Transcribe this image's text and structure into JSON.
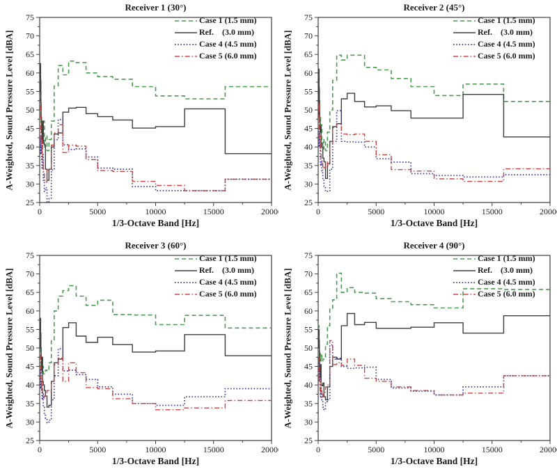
{
  "figure": {
    "xlabel": "1/3-Octave Band [Hz]",
    "ylabel": "A-Weighted, Sound Pressure Level [dBA]",
    "axes": {
      "xlim": [
        0,
        20000
      ],
      "ylim": [
        25,
        75
      ],
      "x_major_ticks": [
        0,
        5000,
        10000,
        15000,
        20000
      ],
      "x_minor_step": 2500,
      "y_major_step": 5,
      "y_minor_step": 2.5,
      "grid": "off",
      "frame": "box"
    },
    "legend": {
      "position": "upper-right-inside",
      "entries": [
        {
          "label": "Case 1 (1.5 mm)",
          "color": "#4a9b50",
          "dash": "dashed"
        },
        {
          "label": "Ref.    (3.0 mm)",
          "color": "#3d3d3d",
          "dash": "solid"
        },
        {
          "label": "Case 4 (4.5 mm)",
          "color": "#3b3b9d",
          "dash": "dotted"
        },
        {
          "label": "Case 5 (6.0 mm)",
          "color": "#c84545",
          "dash": "dashdot"
        }
      ]
    }
  },
  "chart_data": [
    {
      "type": "line",
      "step": "post",
      "title": "Receiver 1 (30°)",
      "xlabel": "1/3-Octave Band [Hz]",
      "ylabel": "A-Weighted, Sound Pressure Level [dBA]",
      "xlim": [
        0,
        20000
      ],
      "ylim": [
        25,
        75
      ],
      "x": [
        50,
        63,
        80,
        100,
        125,
        160,
        200,
        250,
        315,
        400,
        500,
        630,
        800,
        1000,
        1250,
        1600,
        2000,
        2500,
        3150,
        4000,
        5000,
        6300,
        8000,
        10000,
        12500,
        16000,
        20000
      ],
      "series": [
        {
          "name": "Case 1 (1.5 mm)",
          "values": [
            52,
            62,
            55,
            48,
            44,
            46,
            42,
            44,
            47,
            40,
            43,
            39,
            42,
            47,
            56.5,
            62,
            59.5,
            63.2,
            62.8,
            60,
            59,
            58.3,
            56.3,
            53.8,
            53,
            56.3,
            52.8
          ]
        },
        {
          "name": "Ref. (3.0 mm)",
          "values": [
            55,
            62.5,
            58,
            52,
            48,
            44,
            41,
            47,
            41,
            40.5,
            34,
            31,
            34,
            40,
            43.5,
            43.8,
            49.4,
            50.5,
            50.7,
            49,
            48.2,
            47.3,
            45.1,
            45.5,
            50.3,
            38.2,
            38.2
          ]
        },
        {
          "name": "Case 4 (4.5 mm)",
          "values": [
            43,
            40,
            38,
            43,
            40,
            36,
            34,
            38,
            31,
            28,
            29,
            24.3,
            26,
            33.8,
            42,
            47.4,
            40.6,
            39.3,
            39.5,
            37.3,
            34.3,
            34,
            29.3,
            28.2,
            28.2,
            31.3,
            31.3
          ]
        },
        {
          "name": "Case 5 (6.0 mm)",
          "values": [
            50,
            52,
            48,
            43,
            40.5,
            38,
            42,
            36,
            33,
            31,
            30.5,
            33.8,
            34,
            40.5,
            43.8,
            46,
            38.5,
            40.5,
            40.2,
            36.6,
            33.6,
            33.4,
            30.7,
            29.6,
            28.2,
            31.3,
            31.3
          ]
        }
      ]
    },
    {
      "type": "line",
      "step": "post",
      "title": "Receiver 2 (45°)",
      "xlabel": "1/3-Octave Band [Hz]",
      "ylabel": "A-Weighted, Sound Pressure Level [dBA]",
      "xlim": [
        0,
        20000
      ],
      "ylim": [
        25,
        75
      ],
      "x": [
        50,
        63,
        80,
        100,
        125,
        160,
        200,
        250,
        315,
        400,
        500,
        630,
        800,
        1000,
        1250,
        1600,
        2000,
        2500,
        3150,
        4000,
        5000,
        6300,
        8000,
        10000,
        12500,
        16000,
        20000
      ],
      "series": [
        {
          "name": "Case 1 (1.5 mm)",
          "values": [
            53,
            60.5,
            55,
            50,
            46,
            48,
            44,
            46,
            42,
            39.5,
            42,
            39,
            44,
            50,
            58,
            64.8,
            63.5,
            64.8,
            64.8,
            61.5,
            60.8,
            58.5,
            56.3,
            53.9,
            57,
            52.3,
            52.3
          ]
        },
        {
          "name": "Ref. (3.0 mm)",
          "values": [
            48,
            61,
            56,
            52.5,
            47,
            44,
            45.5,
            41,
            40,
            37,
            36,
            31.5,
            35.5,
            41.5,
            45.5,
            46.3,
            53,
            54.5,
            52.3,
            50.8,
            51.1,
            49.8,
            47.8,
            47.8,
            54.2,
            42.7,
            42.7
          ]
        },
        {
          "name": "Case 4 (4.5 mm)",
          "values": [
            45,
            43,
            40,
            44,
            41,
            37,
            35,
            36,
            33,
            31.5,
            29,
            28,
            28.2,
            34,
            41.5,
            49.8,
            41.5,
            41.4,
            41.3,
            40,
            36.8,
            35.9,
            32.8,
            32.3,
            31.9,
            32.5,
            32.5
          ]
        },
        {
          "name": "Case 5 (6.0 mm)",
          "values": [
            49.8,
            52,
            48,
            45,
            42,
            39,
            43,
            37,
            35.5,
            33.8,
            34.5,
            36,
            35,
            41,
            45.3,
            46.2,
            43.5,
            43.3,
            43.5,
            41.5,
            37.9,
            33.9,
            33.5,
            31.4,
            30.7,
            34.1,
            34.1
          ]
        }
      ]
    },
    {
      "type": "line",
      "step": "post",
      "title": "Receiver 3 (60°)",
      "xlabel": "1/3-Octave Band [Hz]",
      "ylabel": "A-Weighted, Sound Pressure Level [dBA]",
      "xlim": [
        0,
        20000
      ],
      "ylim": [
        25,
        75
      ],
      "x": [
        50,
        63,
        80,
        100,
        125,
        160,
        200,
        250,
        315,
        400,
        500,
        630,
        800,
        1000,
        1250,
        1600,
        2000,
        2500,
        3150,
        4000,
        5000,
        6300,
        8000,
        10000,
        12500,
        16000,
        20000
      ],
      "series": [
        {
          "name": "Case 1 (1.5 mm)",
          "values": [
            49,
            58,
            53,
            48.5,
            45.5,
            47,
            43.5,
            45,
            43,
            43.5,
            44,
            43.8,
            46,
            52,
            60,
            64,
            65.5,
            66.8,
            64,
            61.5,
            62.9,
            59,
            58.9,
            56.3,
            58.8,
            55.4,
            55.4
          ]
        },
        {
          "name": "Ref. (3.0 mm)",
          "values": [
            50,
            58,
            54,
            50,
            47.5,
            44,
            47.5,
            41,
            40,
            38.5,
            37,
            34,
            34.5,
            41,
            46,
            47,
            55.5,
            56.8,
            53.2,
            51.5,
            52.9,
            50.9,
            48.9,
            49.2,
            53.6,
            47.9,
            47.9
          ]
        },
        {
          "name": "Case 4 (4.5 mm)",
          "values": [
            44,
            42,
            39,
            44.5,
            41,
            38,
            36,
            38,
            34,
            32,
            31,
            29.8,
            30.5,
            36,
            42.5,
            49.8,
            43.8,
            44,
            42.8,
            41.5,
            39.5,
            37.5,
            35,
            34.5,
            36.8,
            39,
            39
          ]
        },
        {
          "name": "Case 5 (6.0 mm)",
          "values": [
            48,
            47.5,
            45,
            42,
            40.5,
            38.5,
            42,
            37.5,
            36.5,
            37,
            36.8,
            38.5,
            38.3,
            41,
            45.5,
            47.3,
            41,
            46,
            43.3,
            39.3,
            39,
            36.3,
            35,
            33.3,
            33.8,
            35.8,
            35.8
          ]
        }
      ]
    },
    {
      "type": "line",
      "step": "post",
      "title": "Receiver 4 (90°)",
      "xlabel": "1/3-Octave Band [Hz]",
      "ylabel": "A-Weighted, Sound Pressure Level [dBA]",
      "xlim": [
        0,
        20000
      ],
      "ylim": [
        25,
        75
      ],
      "x": [
        50,
        63,
        80,
        100,
        125,
        160,
        200,
        250,
        315,
        400,
        500,
        630,
        800,
        1000,
        1250,
        1600,
        2000,
        2500,
        3150,
        4000,
        5000,
        6300,
        8000,
        10000,
        12500,
        16000,
        20000
      ],
      "series": [
        {
          "name": "Case 1 (1.5 mm)",
          "values": [
            55.5,
            56,
            52,
            49,
            47,
            48.5,
            46.5,
            48,
            46.5,
            47,
            47.5,
            51,
            56,
            60.5,
            63,
            70.2,
            65,
            66.3,
            65,
            64.8,
            63.3,
            62.5,
            61.7,
            60.8,
            66,
            65.8,
            65.8
          ]
        },
        {
          "name": "Ref. (3.0 mm)",
          "values": [
            50,
            55,
            52,
            47.5,
            45,
            42,
            45.5,
            40,
            39.8,
            40.5,
            36.8,
            36,
            39.5,
            45,
            47.5,
            47,
            56,
            59.3,
            56.3,
            56.9,
            55.3,
            55.3,
            55.6,
            56.8,
            54,
            58.7,
            58.7
          ]
        },
        {
          "name": "Case 4 (4.5 mm)",
          "values": [
            46,
            44,
            41,
            45,
            42,
            38.5,
            36.5,
            39,
            36,
            34,
            33.3,
            35.5,
            36,
            50.8,
            47,
            47.2,
            45,
            44.5,
            44.6,
            44.8,
            41.5,
            39.2,
            38.3,
            37.3,
            39.5,
            42.5,
            42.5
          ]
        },
        {
          "name": "Case 5 (6.0 mm)",
          "values": [
            47.5,
            45,
            43,
            42,
            40,
            37.5,
            41,
            38.5,
            36.5,
            37.5,
            38,
            39.5,
            40,
            52,
            45.5,
            46,
            45.3,
            47,
            45.3,
            41.8,
            41,
            39.5,
            38.5,
            37.3,
            37.8,
            42.5,
            42.5
          ]
        }
      ]
    }
  ]
}
